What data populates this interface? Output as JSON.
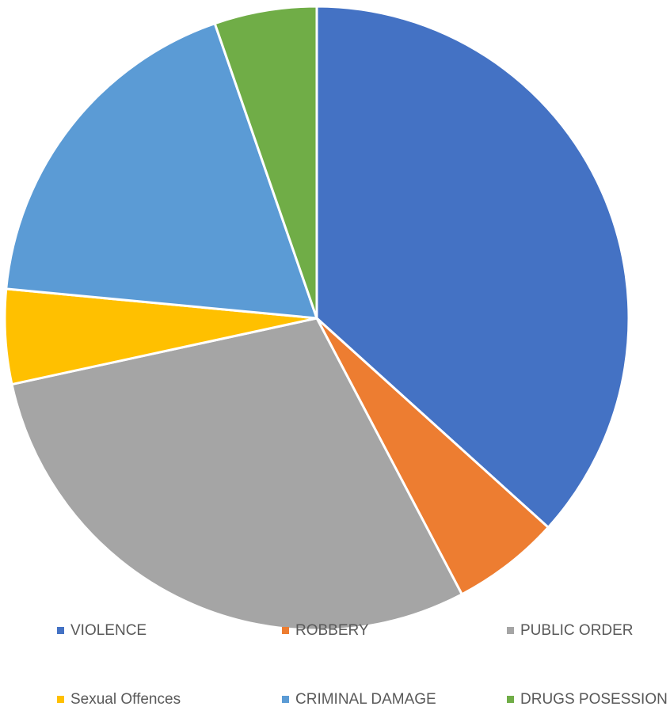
{
  "chart_data": {
    "type": "pie",
    "title": "",
    "categories": [
      "VIOLENCE",
      "ROBBERY",
      "PUBLIC ORDER",
      "Sexual Offences",
      "CRIMINAL DAMAGE",
      "DRUGS POSESSION"
    ],
    "values": [
      36.7,
      5.6,
      29.3,
      4.9,
      18.2,
      5.3
    ],
    "colors": [
      "#4472C4",
      "#ED7D31",
      "#A5A5A5",
      "#FFC000",
      "#5B9BD5",
      "#70AD47"
    ],
    "legend_position": "bottom",
    "start_angle_deg": 0,
    "direction": "clockwise"
  }
}
